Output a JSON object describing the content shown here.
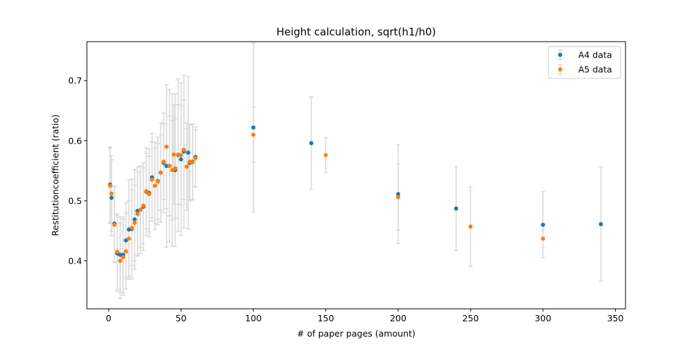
{
  "chart_data": {
    "type": "scatter",
    "title": "Height calculation, sqrt(h1/h0)",
    "xlabel": "# of paper pages (amount)",
    "ylabel": "Restitutioncoefficient (ratio)",
    "xlim": [
      -15,
      357
    ],
    "ylim": [
      0.32,
      0.765
    ],
    "xticks": [
      0,
      50,
      100,
      150,
      200,
      250,
      300,
      350
    ],
    "xtick_labels": [
      "0",
      "50",
      "100",
      "150",
      "200",
      "250",
      "300",
      "350"
    ],
    "yticks": [
      0.4,
      0.5,
      0.6,
      0.7
    ],
    "ytick_labels": [
      "0.4",
      "0.5",
      "0.6",
      "0.7"
    ],
    "grid": false,
    "legend_position": "top-right",
    "errorbar_color": "#d9d9d9",
    "series": [
      {
        "name": "A4 data",
        "color": "#1f77b4",
        "points": [
          {
            "x": 1,
            "y": 0.527,
            "err": 0.063
          },
          {
            "x": 2,
            "y": 0.505,
            "err": 0.063
          },
          {
            "x": 4,
            "y": 0.462,
            "err": 0.063
          },
          {
            "x": 6,
            "y": 0.412,
            "err": 0.063
          },
          {
            "x": 8,
            "y": 0.41,
            "err": 0.063
          },
          {
            "x": 10,
            "y": 0.41,
            "err": 0.063
          },
          {
            "x": 12,
            "y": 0.434,
            "err": 0.063
          },
          {
            "x": 14,
            "y": 0.452,
            "err": 0.083
          },
          {
            "x": 16,
            "y": 0.453,
            "err": 0.083
          },
          {
            "x": 18,
            "y": 0.469,
            "err": 0.083
          },
          {
            "x": 20,
            "y": 0.483,
            "err": 0.073
          },
          {
            "x": 22,
            "y": 0.485,
            "err": 0.073
          },
          {
            "x": 24,
            "y": 0.49,
            "err": 0.073
          },
          {
            "x": 26,
            "y": 0.515,
            "err": 0.073
          },
          {
            "x": 28,
            "y": 0.513,
            "err": 0.073
          },
          {
            "x": 30,
            "y": 0.539,
            "err": 0.073
          },
          {
            "x": 32,
            "y": 0.525,
            "err": 0.073
          },
          {
            "x": 34,
            "y": 0.533,
            "err": 0.073
          },
          {
            "x": 36,
            "y": 0.547,
            "err": 0.083
          },
          {
            "x": 38,
            "y": 0.563,
            "err": 0.083
          },
          {
            "x": 40,
            "y": 0.558,
            "err": 0.135
          },
          {
            "x": 42,
            "y": 0.558,
            "err": 0.127
          },
          {
            "x": 44,
            "y": 0.551,
            "err": 0.127
          },
          {
            "x": 46,
            "y": 0.551,
            "err": 0.127
          },
          {
            "x": 48,
            "y": 0.576,
            "err": 0.127
          },
          {
            "x": 50,
            "y": 0.569,
            "err": 0.127
          },
          {
            "x": 52,
            "y": 0.582,
            "err": 0.127
          },
          {
            "x": 54,
            "y": 0.557,
            "err": 0.073
          },
          {
            "x": 55,
            "y": 0.58,
            "err": 0.127
          },
          {
            "x": 56,
            "y": 0.563,
            "err": 0.063
          },
          {
            "x": 58,
            "y": 0.565,
            "err": 0.063
          },
          {
            "x": 60,
            "y": 0.573,
            "err": 0.05
          },
          {
            "x": 100,
            "y": 0.622,
            "err": 0.141
          },
          {
            "x": 140,
            "y": 0.596,
            "err": 0.077
          },
          {
            "x": 200,
            "y": 0.511,
            "err": 0.082
          },
          {
            "x": 240,
            "y": 0.487,
            "err": 0.07
          },
          {
            "x": 300,
            "y": 0.46,
            "err": 0.055
          },
          {
            "x": 340,
            "y": 0.461,
            "err": 0.095
          }
        ]
      },
      {
        "name": "A5 data",
        "color": "#ff7f0e",
        "points": [
          {
            "x": 1,
            "y": 0.525,
            "err": 0.063
          },
          {
            "x": 2,
            "y": 0.512,
            "err": 0.063
          },
          {
            "x": 4,
            "y": 0.46,
            "err": 0.063
          },
          {
            "x": 6,
            "y": 0.415,
            "err": 0.063
          },
          {
            "x": 8,
            "y": 0.4,
            "err": 0.063
          },
          {
            "x": 10,
            "y": 0.406,
            "err": 0.063
          },
          {
            "x": 12,
            "y": 0.416,
            "err": 0.063
          },
          {
            "x": 14,
            "y": 0.437,
            "err": 0.063
          },
          {
            "x": 16,
            "y": 0.455,
            "err": 0.063
          },
          {
            "x": 18,
            "y": 0.463,
            "err": 0.063
          },
          {
            "x": 20,
            "y": 0.478,
            "err": 0.07
          },
          {
            "x": 22,
            "y": 0.485,
            "err": 0.063
          },
          {
            "x": 24,
            "y": 0.492,
            "err": 0.063
          },
          {
            "x": 26,
            "y": 0.516,
            "err": 0.063
          },
          {
            "x": 28,
            "y": 0.511,
            "err": 0.063
          },
          {
            "x": 30,
            "y": 0.535,
            "err": 0.063
          },
          {
            "x": 32,
            "y": 0.525,
            "err": 0.063
          },
          {
            "x": 34,
            "y": 0.532,
            "err": 0.063
          },
          {
            "x": 36,
            "y": 0.547,
            "err": 0.063
          },
          {
            "x": 38,
            "y": 0.565,
            "err": 0.063
          },
          {
            "x": 40,
            "y": 0.59,
            "err": 0.103
          },
          {
            "x": 42,
            "y": 0.558,
            "err": 0.083
          },
          {
            "x": 44,
            "y": 0.551,
            "err": 0.083
          },
          {
            "x": 45,
            "y": 0.577,
            "err": 0.083
          },
          {
            "x": 46,
            "y": 0.554,
            "err": 0.083
          },
          {
            "x": 48,
            "y": 0.577,
            "err": 0.083
          },
          {
            "x": 50,
            "y": 0.576,
            "err": 0.083
          },
          {
            "x": 52,
            "y": 0.585,
            "err": 0.083
          },
          {
            "x": 54,
            "y": 0.557,
            "err": 0.063
          },
          {
            "x": 56,
            "y": 0.565,
            "err": 0.063
          },
          {
            "x": 58,
            "y": 0.564,
            "err": 0.063
          },
          {
            "x": 60,
            "y": 0.571,
            "err": 0.047
          },
          {
            "x": 100,
            "y": 0.61,
            "err": 0.046
          },
          {
            "x": 150,
            "y": 0.576,
            "err": 0.029
          },
          {
            "x": 200,
            "y": 0.506,
            "err": 0.055
          },
          {
            "x": 250,
            "y": 0.457,
            "err": 0.066
          },
          {
            "x": 300,
            "y": 0.437,
            "err": 0.015
          }
        ]
      }
    ]
  }
}
